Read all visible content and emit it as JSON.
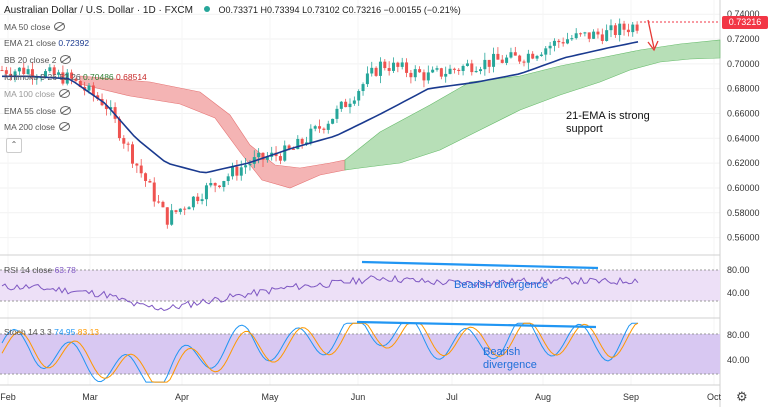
{
  "header": {
    "symbol": "Australian Dollar / U.S. Dollar · 1D · FXCM",
    "ohlc": "O0.73371 H0.73394 L0.73102 C0.73216 −0.00155 (−0.21%)"
  },
  "indicators": {
    "ma50": "MA 50 close",
    "ema21": "EMA 21 close",
    "ema21_value": "0.72392",
    "bb": "BB 20 close 2",
    "ichimoku": "Ichimoku 9 26 52 26",
    "ichimoku_v1": "0.70486",
    "ichimoku_v2": "0.68514",
    "ma100": "MA 100 close",
    "ema55": "EMA 55 close",
    "ma200": "MA 200 close",
    "rsi": "RSI 14 close",
    "rsi_value": "63.78",
    "stoch": "Stoch 14 3 3",
    "stoch_k": "74.95",
    "stoch_d": "83.13"
  },
  "price_tag": "0.73216",
  "annotations": {
    "ema_note_1": "21-EMA is strong",
    "ema_note_2": "support",
    "rsi_note": "Bearish divergence",
    "stoch_note_1": "Bearish",
    "stoch_note_2": "divergence"
  },
  "colors": {
    "up": "#26a69a",
    "down": "#ef5350",
    "ema": "#1a3a8f",
    "cloud_bull": "#a5d6a7",
    "cloud_bear": "#ef9a9a",
    "rsi": "#7e57c2",
    "stoch_k": "#2196f3",
    "stoch_d": "#ff9800",
    "trend": "#2196f3",
    "price_tag": "#f23645"
  },
  "chart_data": {
    "type": "candlestick",
    "x_ticks": [
      "Feb",
      "Mar",
      "Apr",
      "May",
      "Jun",
      "Jul",
      "Aug",
      "Sep",
      "Oct"
    ],
    "y_ticks": [
      "0.74000",
      "0.72000",
      "0.70000",
      "0.68000",
      "0.66000",
      "0.64000",
      "0.62000",
      "0.60000",
      "0.58000",
      "0.56000"
    ],
    "ylim": [
      0.55,
      0.745
    ],
    "rsi_ticks": [
      "80.00",
      "40.00"
    ],
    "stoch_ticks": [
      "80.00",
      "40.00"
    ],
    "anchors": [
      {
        "month": "Feb",
        "price": 0.695
      },
      {
        "month": "Feb",
        "price": 0.688
      },
      {
        "month": "Mar",
        "price": 0.668
      },
      {
        "month": "Mar",
        "price": 0.62
      },
      {
        "month": "Mar",
        "price": 0.575
      },
      {
        "month": "Apr",
        "price": 0.598
      },
      {
        "month": "Apr",
        "price": 0.62
      },
      {
        "month": "May",
        "price": 0.63
      },
      {
        "month": "May",
        "price": 0.66
      },
      {
        "month": "Jun",
        "price": 0.7
      },
      {
        "month": "Jun",
        "price": 0.69
      },
      {
        "month": "Jul",
        "price": 0.7
      },
      {
        "month": "Jul",
        "price": 0.705
      },
      {
        "month": "Aug",
        "price": 0.72
      },
      {
        "month": "Aug",
        "price": 0.725
      },
      {
        "month": "Sep",
        "price": 0.735
      },
      {
        "month": "Sep",
        "price": 0.732
      }
    ],
    "ema21": [
      0.69,
      0.688,
      0.668,
      0.64,
      0.62,
      0.612,
      0.62,
      0.632,
      0.642,
      0.66,
      0.68,
      0.685,
      0.692,
      0.705,
      0.713,
      0.72,
      0.724
    ],
    "rsi": [
      55,
      50,
      45,
      30,
      25,
      35,
      45,
      55,
      60,
      68,
      62,
      60,
      63,
      64,
      62,
      66,
      63.78
    ],
    "stoch_k": [
      60,
      40,
      30,
      15,
      20,
      50,
      70,
      60,
      80,
      90,
      70,
      60,
      80,
      70,
      65,
      85,
      74.95
    ],
    "stoch_d": [
      58,
      45,
      35,
      20,
      18,
      40,
      60,
      62,
      75,
      85,
      75,
      65,
      75,
      72,
      68,
      80,
      83.13
    ]
  }
}
